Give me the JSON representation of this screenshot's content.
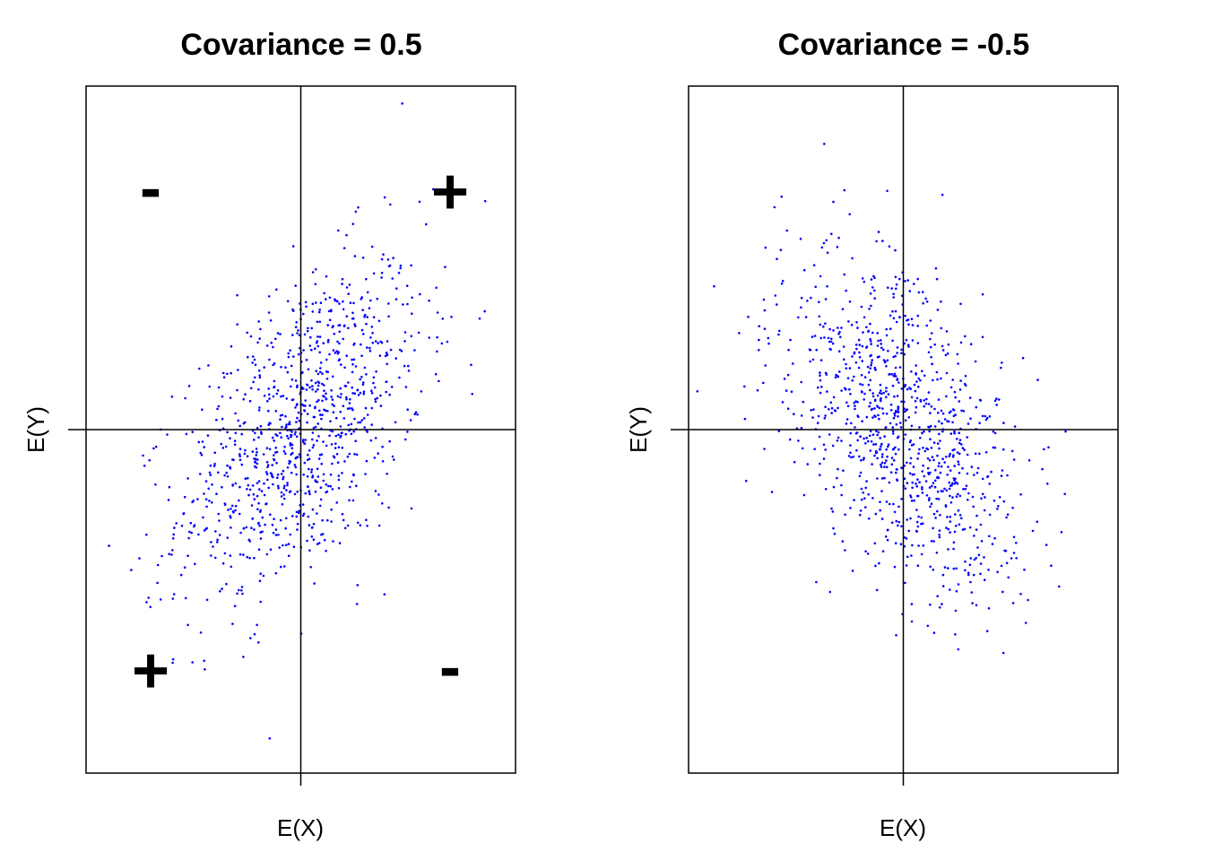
{
  "chart_data": [
    {
      "type": "scatter",
      "title": "Covariance = 0.5",
      "xlabel": "E(X)",
      "ylabel": "E(Y)",
      "covariance": 0.5,
      "x_tick_label": "",
      "xlim": [
        -3.5,
        3.5
      ],
      "ylim": [
        -4.0,
        4.0
      ],
      "grid": false,
      "point_color": "#0000ff",
      "reference_lines": {
        "x": 0,
        "y": 0
      },
      "quadrant_signs": {
        "top_left": "-",
        "top_right": "+",
        "bottom_left": "+",
        "bottom_right": "-"
      },
      "n_points": 1000
    },
    {
      "type": "scatter",
      "title": "Covariance = -0.5",
      "xlabel": "E(X)",
      "ylabel": "E(Y)",
      "covariance": -0.5,
      "xlim": [
        -3.5,
        3.5
      ],
      "ylim": [
        -4.0,
        4.0
      ],
      "grid": false,
      "point_color": "#0000ff",
      "reference_lines": {
        "x": 0,
        "y": 0
      },
      "n_points": 1000
    }
  ]
}
